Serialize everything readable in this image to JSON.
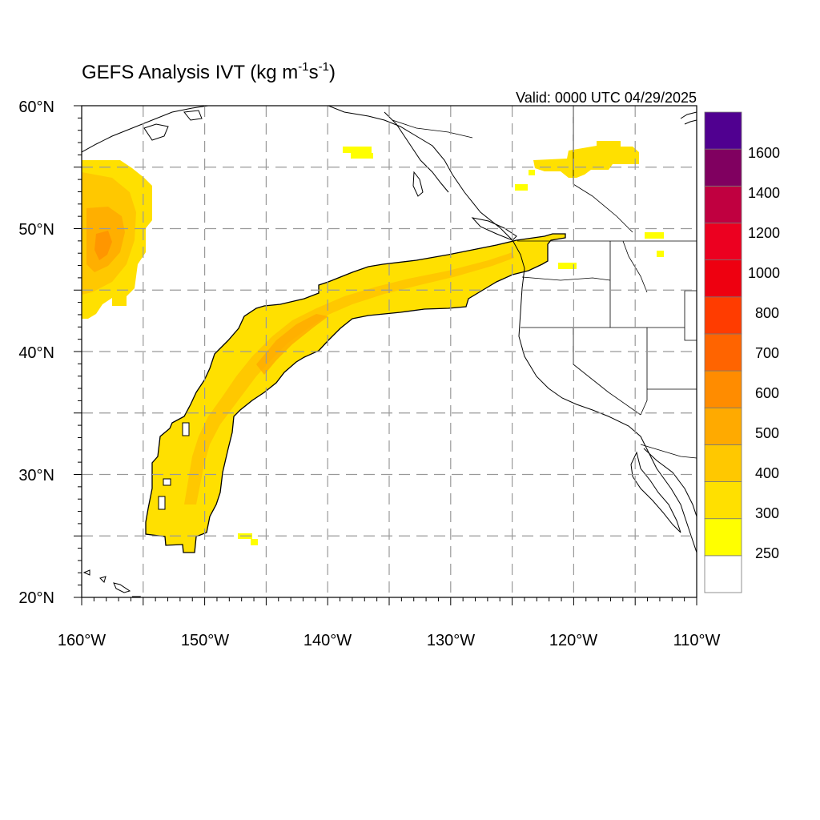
{
  "title": {
    "main": "GEFS Analysis IVT (kg m",
    "sup1": "-1",
    "mid": "s",
    "sup2": "-1",
    "close": ")"
  },
  "valid_time": "Valid: 0000 UTC 04/29/2025",
  "axes": {
    "lon_labels": [
      "160°W",
      "150°W",
      "140°W",
      "130°W",
      "120°W",
      "110°W"
    ],
    "lat_labels": [
      "20°N",
      "30°N",
      "40°N",
      "50°N",
      "60°N"
    ]
  },
  "colorbar": {
    "labels": [
      "250",
      "300",
      "400",
      "500",
      "600",
      "700",
      "800",
      "1000",
      "1200",
      "1400",
      "1600"
    ],
    "colors": [
      "#ffffff",
      "#ffff00",
      "#ffe000",
      "#ffc800",
      "#ffaa00",
      "#ff8c00",
      "#ff6400",
      "#ff3c00",
      "#ee0010",
      "#ec0020",
      "#c00040",
      "#800060",
      "#500090"
    ]
  },
  "chart_data": {
    "type": "heatmap",
    "variable": "IVT",
    "units": "kg m-1 s-1",
    "lon_range": [
      -160,
      -110
    ],
    "lat_range": [
      20,
      60
    ],
    "grid": true,
    "grid_lons": [
      -155,
      -150,
      -145,
      -140,
      -135,
      -130,
      -125,
      -120,
      -115
    ],
    "grid_lats": [
      25,
      30,
      35,
      40,
      45,
      50,
      55
    ],
    "color_levels": [
      250,
      300,
      400,
      500,
      600,
      700,
      800,
      1000,
      1200,
      1400,
      1600
    ],
    "features": [
      {
        "name": "atmospheric river",
        "path_lonlat": [
          [
            -153,
            25
          ],
          [
            -152,
            28
          ],
          [
            -151,
            32
          ],
          [
            -150,
            35
          ],
          [
            -148,
            38
          ],
          [
            -145,
            41
          ],
          [
            -141,
            43
          ],
          [
            -136,
            44.5
          ],
          [
            -130,
            45.5
          ],
          [
            -125,
            47.5
          ],
          [
            -122,
            49
          ]
        ],
        "peak_ivt": 400
      },
      {
        "name": "western moisture band",
        "center_lonlat": [
          -158,
          49
        ],
        "peak_ivt": 500
      },
      {
        "name": "northern patches",
        "center_lonlat": [
          -120,
          55.5
        ],
        "peak_ivt": 300
      }
    ]
  }
}
